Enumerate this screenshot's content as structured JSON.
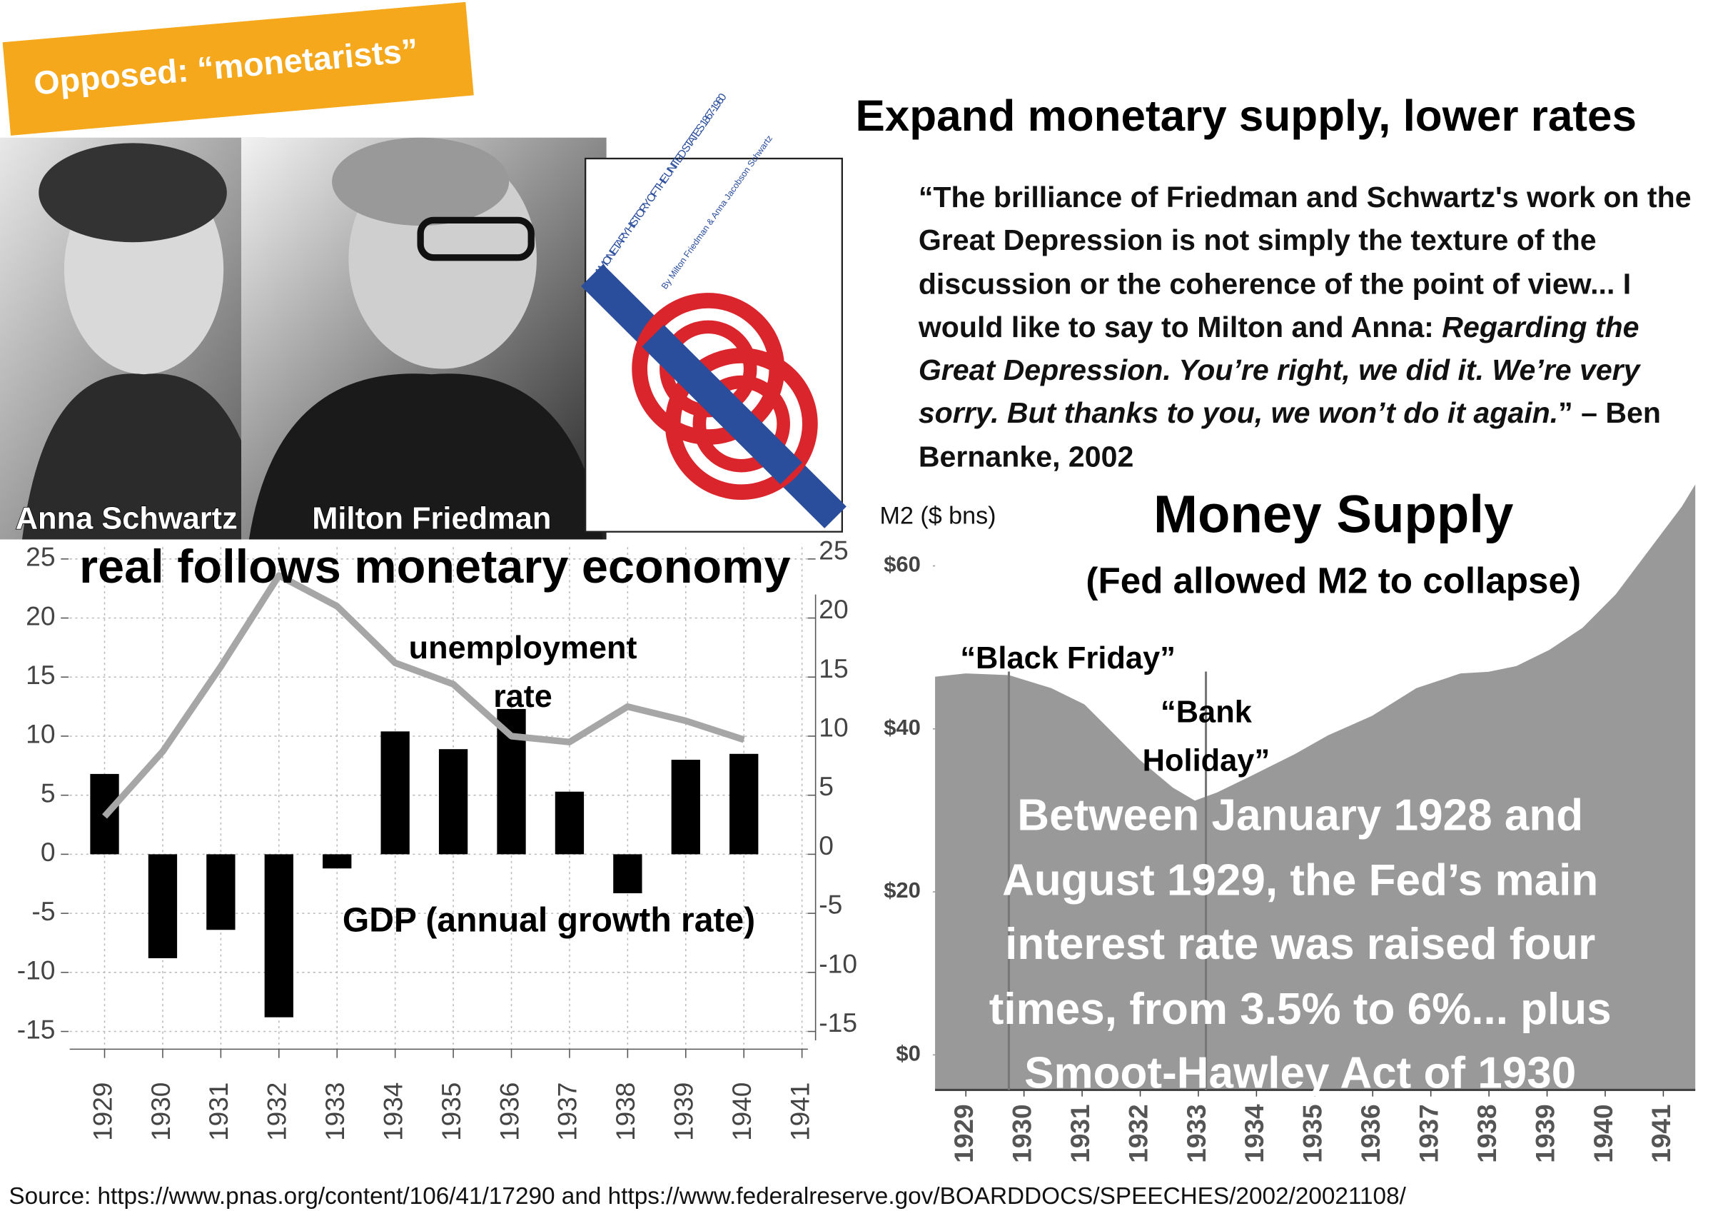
{
  "slide": {
    "banner": "Opposed: “monetarists”",
    "heading": "Expand monetary supply, lower rates",
    "people": [
      "Anna Schwartz",
      "Milton Friedman"
    ],
    "book": {
      "title": "A MONETARY HISTORY OF THE UNITED STATES 1867-1960",
      "authors": "By Milton Friedman & Anna Jacobson Schwartz"
    },
    "quote": [
      {
        "text": "“The brilliance of Friedman and Schwartz's work on the Great Depression is not simply the texture of the discussion or the coherence of the point of view... I would like to say to Milton and Anna: ",
        "italic": false
      },
      {
        "text": "Regarding the Great Depression. You’re right, we did it. We’re very sorry. But thanks to you, we won’t do it again.",
        "italic": true
      },
      {
        "text": "” – Ben Bernanke, 2002",
        "italic": false
      }
    ],
    "source": "Source: https://www.pnas.org/content/106/41/17290 and https://www.federalreserve.gov/BOARDDOCS/SPEECHES/2002/20021108/"
  },
  "chart_data": [
    {
      "type": "bar",
      "title": "real follows monetary economy",
      "x": [
        1929,
        1930,
        1931,
        1932,
        1933,
        1934,
        1935,
        1936,
        1937,
        1938,
        1939,
        1940,
        1941
      ],
      "xlim": [
        1928.4,
        1941.1
      ],
      "xticks": [
        1929,
        1930,
        1931,
        1932,
        1933,
        1934,
        1935,
        1936,
        1937,
        1938,
        1939,
        1940,
        1941
      ],
      "ylim": [
        -16.5,
        26
      ],
      "yticks": [
        -15,
        -10,
        -5,
        0,
        5,
        10,
        15,
        20,
        25
      ],
      "y2lim": [
        -16.5,
        26
      ],
      "y2ticks": [
        -15,
        -10,
        -5,
        0,
        5,
        10,
        15,
        20,
        25
      ],
      "grid": true,
      "series": [
        {
          "name": "GDP (annual growth rate)",
          "type": "bar",
          "color": "#000000",
          "values": [
            6.8,
            -8.8,
            -6.4,
            -13.8,
            -1.2,
            10.4,
            8.9,
            12.3,
            5.3,
            -3.3,
            8.0,
            8.5,
            null
          ]
        },
        {
          "name": "unemployment rate",
          "type": "line",
          "axis": "y2",
          "color": "#a6a6a6",
          "values": [
            3.2,
            8.7,
            15.9,
            23.6,
            21.0,
            16.2,
            14.4,
            10.0,
            9.5,
            12.5,
            11.3,
            9.7,
            null
          ]
        }
      ]
    },
    {
      "type": "area",
      "title": "Money Supply",
      "subtitle": "(Fed allowed M2 to collapse)",
      "y_label": "M2 ($ bns)",
      "color": "#999999",
      "x": [
        1928.47,
        1929,
        1929.74,
        1930.47,
        1931.04,
        1931.42,
        1931.99,
        1932.56,
        1932.94,
        1933.32,
        1933.9,
        1934.66,
        1935.23,
        1935.99,
        1936.75,
        1937.51,
        1937.99,
        1938.47,
        1939.04,
        1939.61,
        1940.18,
        1940.75,
        1941.32,
        1941.55
      ],
      "values": [
        46.4,
        46.8,
        46.6,
        45,
        43,
        40.3,
        36.2,
        32.8,
        31.2,
        32.2,
        34.2,
        36.9,
        39.2,
        41.6,
        45,
        46.8,
        47,
        47.7,
        49.7,
        52.4,
        56.5,
        61.9,
        67.3,
        70
      ],
      "xlim": [
        1928.47,
        1941.55
      ],
      "xticks": [
        1929,
        1930,
        1931,
        1932,
        1933,
        1934,
        1935,
        1936,
        1937,
        1938,
        1939,
        1940,
        1941
      ],
      "ylim": [
        -4.3,
        70
      ],
      "yticks": [
        {
          "value": 0,
          "label": "$0"
        },
        {
          "value": 20,
          "label": "$20"
        },
        {
          "value": 40,
          "label": "$40"
        },
        {
          "value": 60,
          "label": "$60"
        }
      ],
      "annotations": [
        {
          "text": "“Black Friday”",
          "x": 1929.74
        },
        {
          "text": "“Bank Holiday”",
          "x": 1933.13
        }
      ],
      "note": "Between January 1928 and August 1929, the Fed’s main interest rate was raised four times, from 3.5% to 6%... plus Smoot-Hawley Act of 1930"
    }
  ]
}
